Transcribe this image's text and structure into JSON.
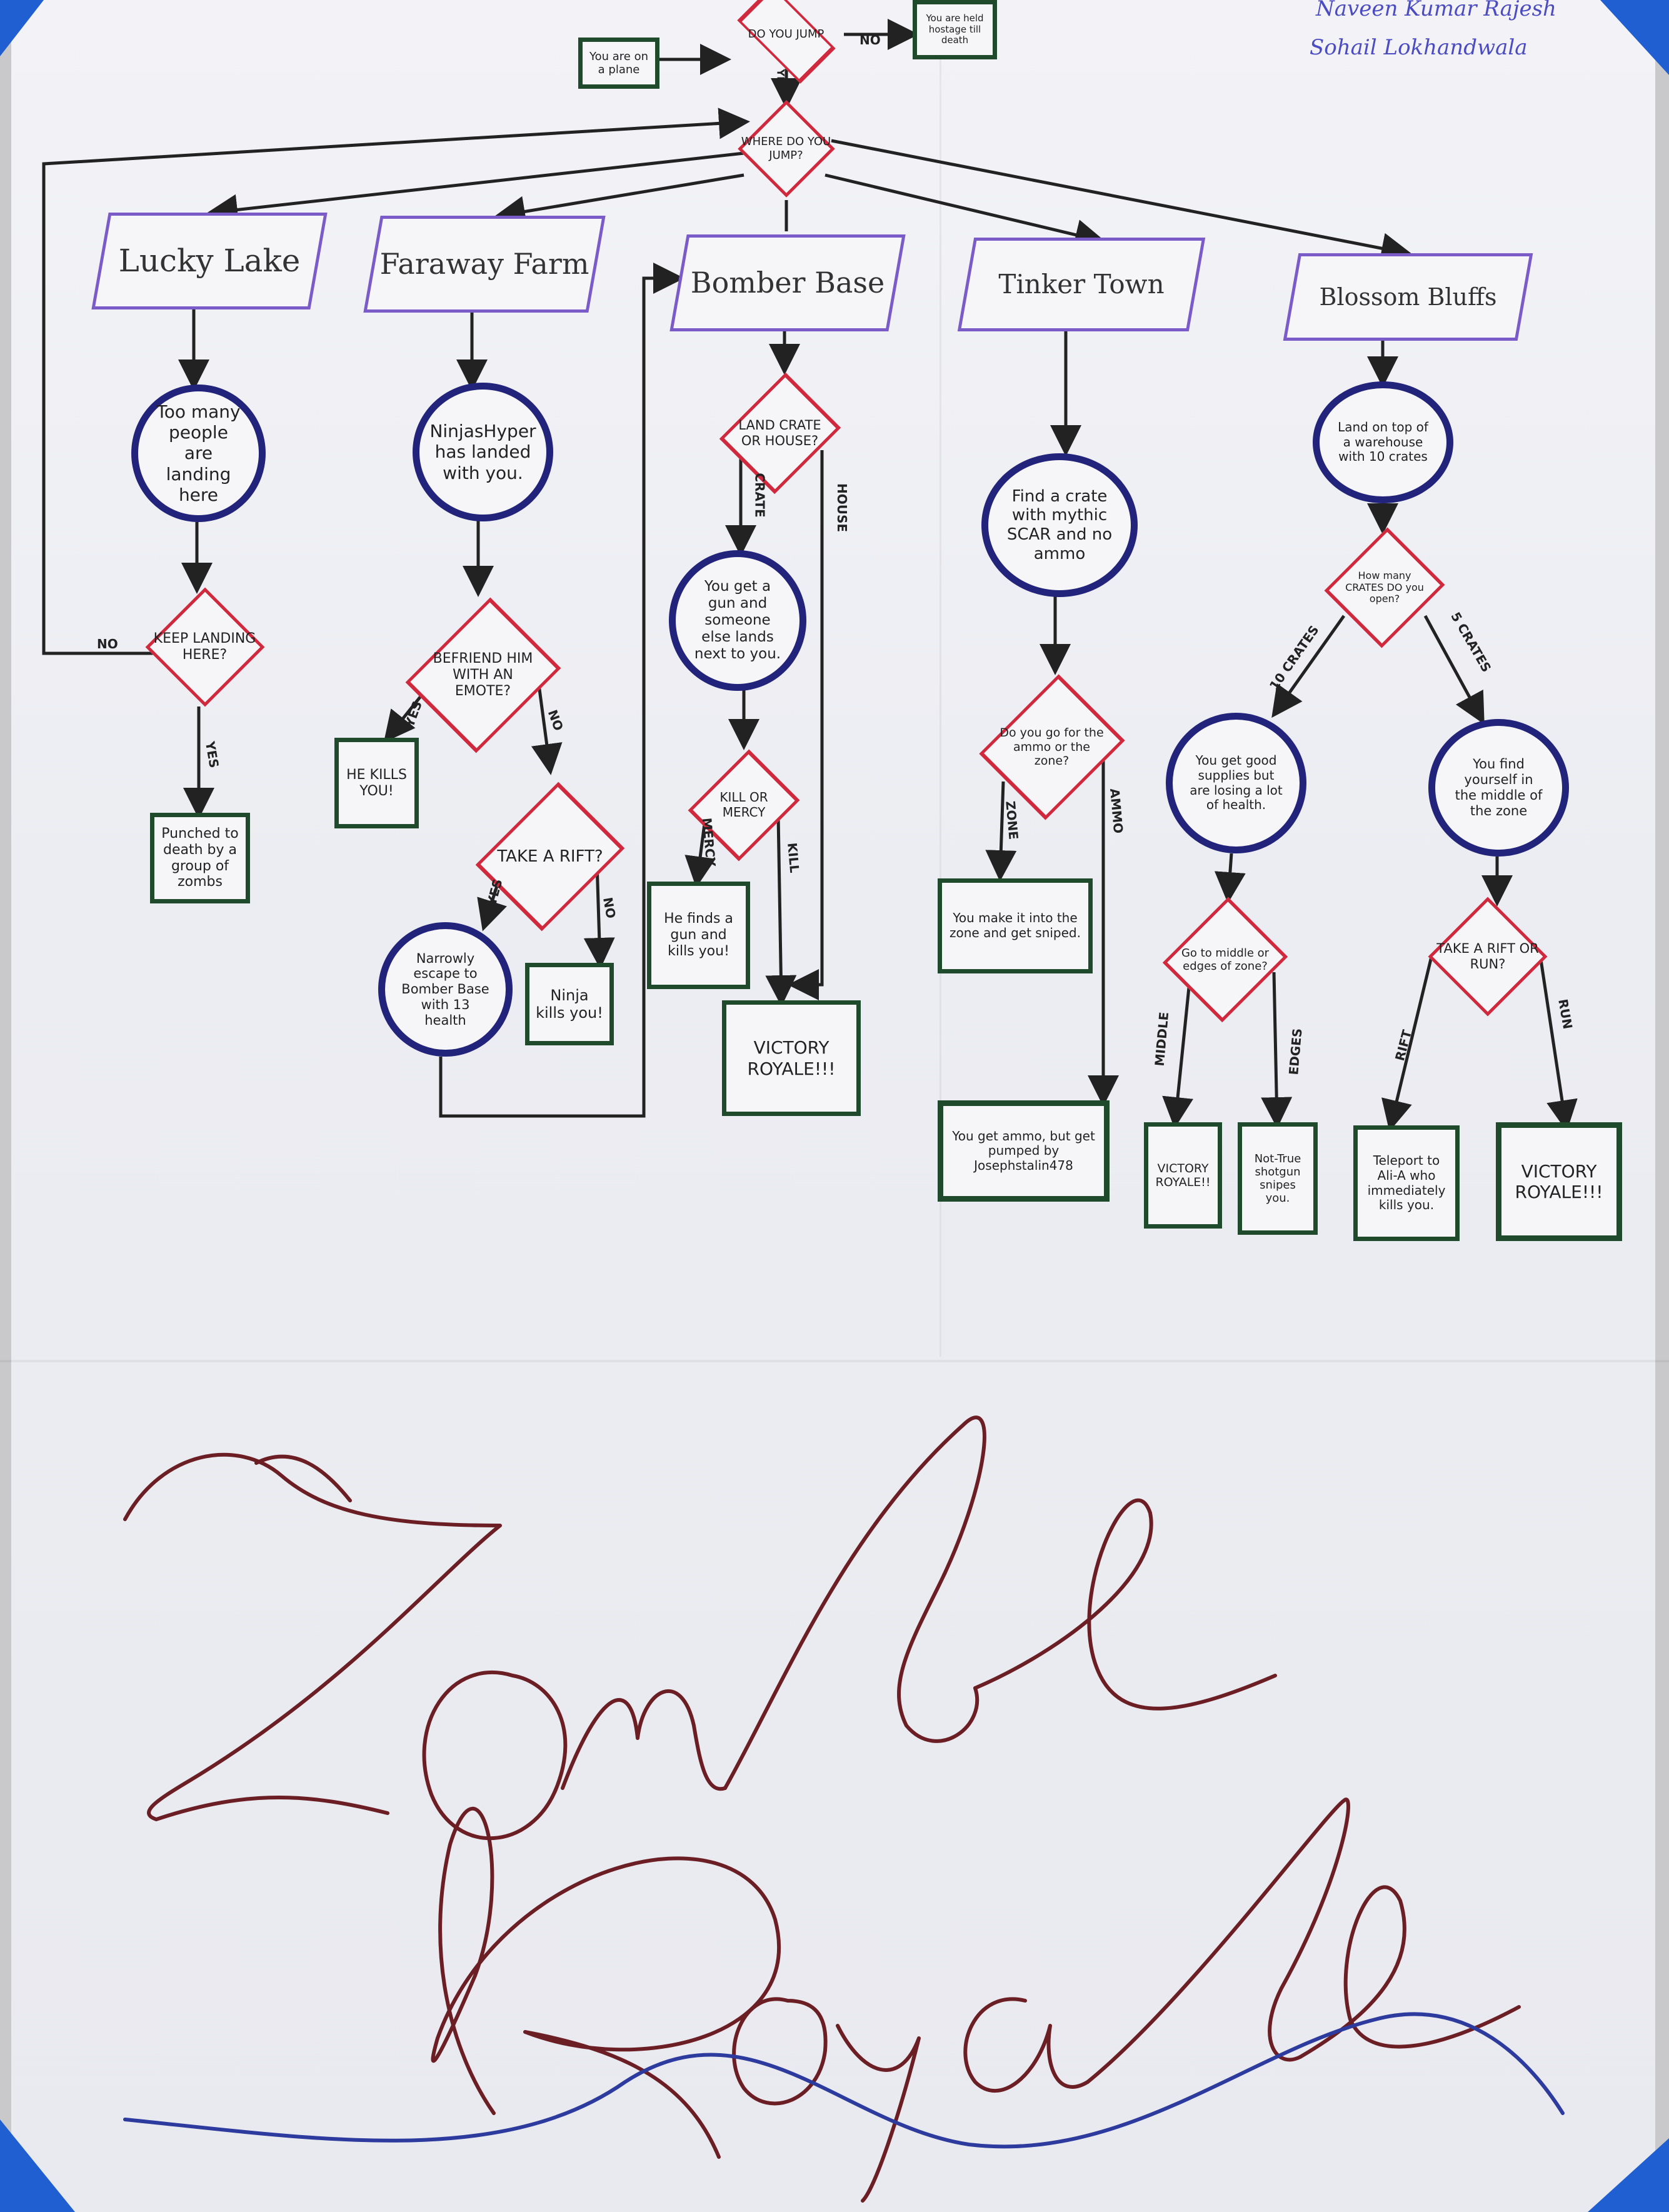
{
  "authors": [
    "Naveen Kumar Rajesh",
    "Sohail Lokhandwala"
  ],
  "title_text": "Zombs Royale",
  "colors": {
    "rect_border": "#1f4a2c",
    "circle_border": "#22237a",
    "diamond_border": "#d0283c",
    "location_border": "#7a5bc8",
    "tape": "#1f5fd1",
    "title_ink": "#6b1e23"
  },
  "nodes": {
    "start": "You are on a plane",
    "q_jump": "DO YOU JUMP",
    "held_hostage": "You are held hostage till death",
    "q_where": "WHERE DO YOU JUMP?",
    "lucky_lake": "Lucky Lake",
    "faraway_farm": "Faraway Farm",
    "bomber_base": "Bomber Base",
    "tinker_town": "Tinker Town",
    "blossom_bluffs": "Blossom Bluffs",
    "ll_crowd": "Too many people are landing here",
    "ll_q_keep": "KEEP LANDING HERE?",
    "ll_punched": "Punched to death by a group of zombs",
    "ff_ninjas": "NinjasHyper has landed with you.",
    "ff_q_befriend": "BEFRIEND HIM WITH AN EMOTE?",
    "ff_kills": "HE KILLS YOU!",
    "ff_q_rift": "TAKE A RIFT?",
    "ff_escape": "Narrowly escape to Bomber Base with 13 health",
    "ff_ninja_kills": "Ninja kills you!",
    "bb_q_land": "LAND CRATE OR HOUSE?",
    "bb_gun": "You get a gun and someone else lands next to you.",
    "bb_q_kill": "KILL OR MERCY",
    "bb_finds_gun": "He finds a gun and kills you!",
    "bb_victory": "VICTORY ROYALE!!!",
    "tt_crate": "Find a crate with mythic SCAR and no ammo",
    "tt_q_zone": "Do you go for the ammo or the zone?",
    "tt_sniped": "You make it into the zone and get sniped.",
    "tt_pumped": "You get ammo, but get pumped by Josephstalin478",
    "bl_land": "Land on top of a warehouse with 10 crates",
    "bl_q_crates": "How many CRATES DO you open?",
    "bl_supplies": "You get good supplies but are losing a lot of health.",
    "bl_zone": "You find yourself in the middle of the zone",
    "bl_q_middle": "Go to middle or edges of zone?",
    "bl_victory1": "VICTORY ROYALE!!",
    "bl_sniped": "Not-True shotgun snipes you.",
    "bl_q_rift": "TAKE A RIFT OR RUN?",
    "bl_teleport": "Teleport to Ali-A who immediately kills you.",
    "bl_victory2": "VICTORY ROYALE!!!"
  },
  "edge_labels": {
    "no_plane": "NO",
    "yes_plane": "YES",
    "no_keep": "NO",
    "yes_keep": "YES",
    "yes_befriend": "YES",
    "no_befriend": "NO",
    "yes_rift": "YES",
    "no_rift": "NO",
    "crate": "CRATE",
    "house": "HOUSE",
    "mercy": "MERCY",
    "kill": "KILL",
    "zone": "ZONE",
    "ammo": "AMMO",
    "ten_crates": "10 CRATES",
    "five_crates": "5 CRATES",
    "middle": "MIDDLE",
    "edges": "EDGES",
    "rift": "RIFT",
    "run": "RUN"
  }
}
